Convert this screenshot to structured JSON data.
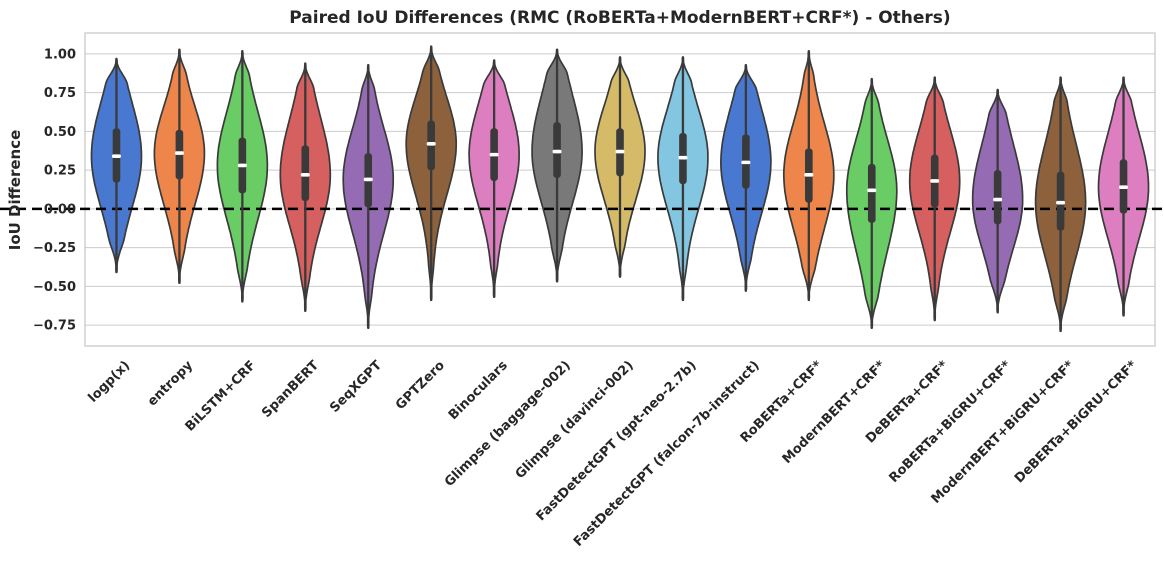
{
  "chart_data": {
    "type": "violin",
    "title": "Paired IoU Differences (RMC (RoBERTa+ModernBERT+CRF*) - Others)",
    "xlabel": "",
    "ylabel": "IoU Difference",
    "ylim": [
      -0.885,
      1.135
    ],
    "yticks": [
      1.0,
      0.75,
      0.5,
      0.25,
      0.0,
      -0.25,
      -0.5,
      -0.75
    ],
    "ytick_labels": [
      "1.00",
      "0.75",
      "0.50",
      "0.25",
      "0.00",
      "−0.25",
      "−0.50",
      "−0.75"
    ],
    "grid": "horizontal",
    "legend": "none",
    "zero_line": {
      "value": 0.0,
      "style": "dashed",
      "color": "#000000"
    },
    "categories": [
      "logp(x)",
      "entropy",
      "BiLSTM+CRF",
      "SpanBERT",
      "SeqXGPT",
      "GPTZero",
      "Binoculars",
      "Glimpse (baggage-002)",
      "Glimpse (davinci-002)",
      "FastDetectGPT (gpt-neo-2.7b)",
      "FastDetectGPT (falcon-7b-instruct)",
      "RoBERTa+CRF*",
      "ModernBERT+CRF*",
      "DeBERTa+CRF*",
      "RoBERTa+BiGRU+CRF*",
      "ModernBERT+BiGRU+CRF*",
      "DeBERTa+BiGRU+CRF*"
    ],
    "violins": [
      {
        "label": "logp(x)",
        "color": "#4878D0",
        "stats": {
          "min": -0.41,
          "q1": 0.17,
          "median": 0.34,
          "q3": 0.52,
          "max": 0.97
        }
      },
      {
        "label": "entropy",
        "color": "#EE854A",
        "stats": {
          "min": -0.48,
          "q1": 0.19,
          "median": 0.36,
          "q3": 0.51,
          "max": 1.03
        }
      },
      {
        "label": "BiLSTM+CRF",
        "color": "#6ACC64",
        "stats": {
          "min": -0.6,
          "q1": 0.1,
          "median": 0.28,
          "q3": 0.46,
          "max": 1.02
        }
      },
      {
        "label": "SpanBERT",
        "color": "#D65F5F",
        "stats": {
          "min": -0.66,
          "q1": 0.05,
          "median": 0.22,
          "q3": 0.41,
          "max": 0.94
        }
      },
      {
        "label": "SeqXGPT",
        "color": "#956CB4",
        "stats": {
          "min": -0.77,
          "q1": 0.01,
          "median": 0.19,
          "q3": 0.36,
          "max": 0.93
        }
      },
      {
        "label": "GPTZero",
        "color": "#8C613C",
        "stats": {
          "min": -0.59,
          "q1": 0.25,
          "median": 0.42,
          "q3": 0.57,
          "max": 1.05
        }
      },
      {
        "label": "Binoculars",
        "color": "#DC7EC0",
        "stats": {
          "min": -0.57,
          "q1": 0.18,
          "median": 0.35,
          "q3": 0.52,
          "max": 0.96
        }
      },
      {
        "label": "Glimpse (baggage-002)",
        "color": "#797979",
        "stats": {
          "min": -0.47,
          "q1": 0.2,
          "median": 0.37,
          "q3": 0.56,
          "max": 1.03
        }
      },
      {
        "label": "Glimpse (davinci-002)",
        "color": "#D5BB67",
        "stats": {
          "min": -0.44,
          "q1": 0.21,
          "median": 0.37,
          "q3": 0.52,
          "max": 0.98
        }
      },
      {
        "label": "FastDetectGPT (gpt-neo-2.7b)",
        "color": "#82C6E2",
        "stats": {
          "min": -0.59,
          "q1": 0.16,
          "median": 0.33,
          "q3": 0.49,
          "max": 0.98
        }
      },
      {
        "label": "FastDetectGPT (falcon-7b-instruct)",
        "color": "#4878D0",
        "stats": {
          "min": -0.53,
          "q1": 0.13,
          "median": 0.3,
          "q3": 0.48,
          "max": 0.93
        }
      },
      {
        "label": "RoBERTa+CRF*",
        "color": "#EE854A",
        "stats": {
          "min": -0.59,
          "q1": 0.04,
          "median": 0.22,
          "q3": 0.39,
          "max": 1.02
        }
      },
      {
        "label": "ModernBERT+CRF*",
        "color": "#6ACC64",
        "stats": {
          "min": -0.77,
          "q1": -0.09,
          "median": 0.12,
          "q3": 0.29,
          "max": 0.84
        }
      },
      {
        "label": "DeBERTa+CRF*",
        "color": "#D65F5F",
        "stats": {
          "min": -0.72,
          "q1": 0.01,
          "median": 0.18,
          "q3": 0.35,
          "max": 0.85
        }
      },
      {
        "label": "RoBERTa+BiGRU+CRF*",
        "color": "#956CB4",
        "stats": {
          "min": -0.67,
          "q1": -0.1,
          "median": 0.06,
          "q3": 0.25,
          "max": 0.77
        }
      },
      {
        "label": "ModernBERT+BiGRU+CRF*",
        "color": "#8C613C",
        "stats": {
          "min": -0.79,
          "q1": -0.14,
          "median": 0.04,
          "q3": 0.24,
          "max": 0.85
        }
      },
      {
        "label": "DeBERTa+BiGRU+CRF*",
        "color": "#DC7EC0",
        "stats": {
          "min": -0.69,
          "q1": -0.03,
          "median": 0.14,
          "q3": 0.32,
          "max": 0.85
        }
      }
    ],
    "colors": {
      "edge": "#3a3a3a",
      "box": "#3a3a3a",
      "median": "#ffffff",
      "grid": "#cccccc",
      "axis_border": "#c4c4c4",
      "background": "#ffffff",
      "text": "#262626"
    }
  }
}
